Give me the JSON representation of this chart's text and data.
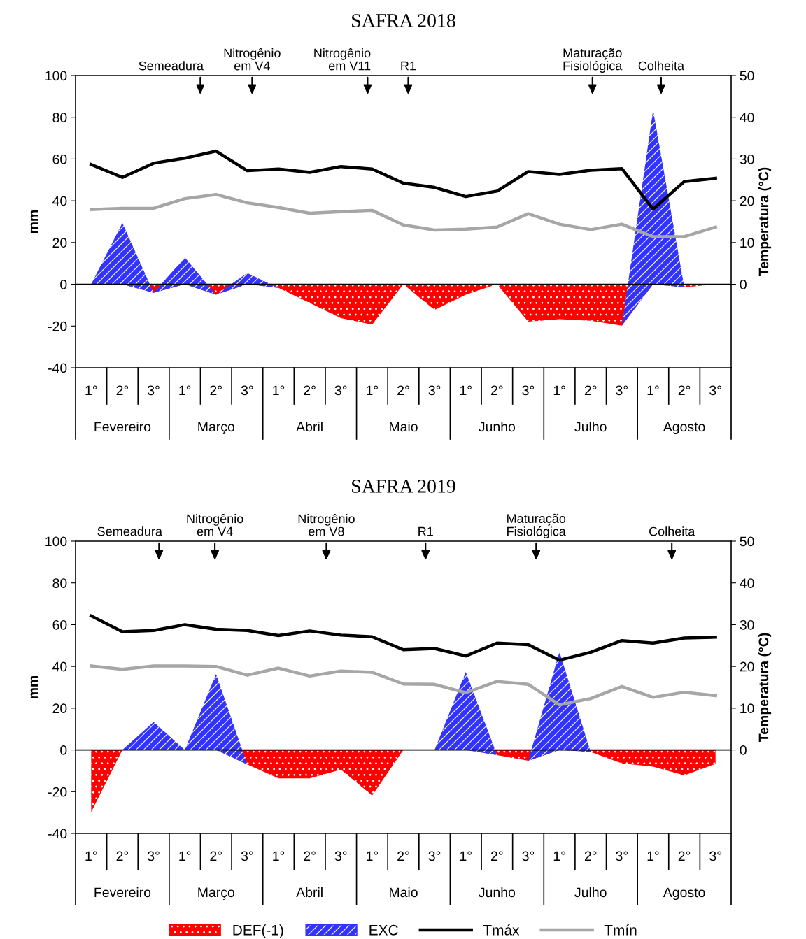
{
  "chart_data": [
    {
      "type": "area",
      "title": "SAFRA 2018",
      "ylabel": "mm",
      "y2label": "Temperatura (°C)",
      "stacked": true,
      "legend": false,
      "grid": false,
      "categories": [
        "1°",
        "2°",
        "3°",
        "1°",
        "2°",
        "3°",
        "1°",
        "2°",
        "3°",
        "1°",
        "2°",
        "3°",
        "1°",
        "2°",
        "3°",
        "1°",
        "2°",
        "3°",
        "1°",
        "2°",
        "3°"
      ],
      "series": [
        {
          "color": "#ff0000",
          "values": [
            0,
            0,
            -4.1,
            0,
            -5.0,
            0,
            -1.7,
            -8.9,
            -16.2,
            -19.3,
            0,
            -12.3,
            -5.0,
            0,
            -17.9,
            -16.7,
            -17.5,
            -19.8,
            0,
            -1.5,
            0
          ]
        },
        {
          "color": "#3333ff",
          "values": [
            0,
            29.4,
            0,
            12.8,
            0,
            5.4,
            0,
            0,
            0,
            0,
            0,
            0,
            0,
            0,
            0,
            0,
            0,
            0,
            83.5,
            0,
            0
          ]
        },
        {
          "type": "line",
          "axis": "y2",
          "color": "#000000",
          "values": [
            28.7,
            25.6,
            29.0,
            30.2,
            31.9,
            27.2,
            27.6,
            26.8,
            28.2,
            27.6,
            24.2,
            23.2,
            21.0,
            22.3,
            27.0,
            26.3,
            27.3,
            27.7,
            18.0,
            24.6,
            25.4
          ]
        },
        {
          "type": "line",
          "axis": "y2",
          "color": "#a6a6a6",
          "values": [
            17.9,
            18.2,
            18.2,
            20.5,
            21.5,
            19.5,
            18.4,
            17.0,
            17.4,
            17.7,
            14.2,
            13.0,
            13.2,
            13.7,
            16.9,
            14.4,
            13.1,
            14.4,
            11.4,
            11.4,
            13.7
          ]
        }
      ],
      "ylim": [
        -40,
        100
      ],
      "yticks": [
        -40,
        -20,
        0,
        20,
        40,
        60,
        80,
        100
      ],
      "y2lim": [
        -20,
        50
      ],
      "y2ticks": [
        0,
        10,
        20,
        30,
        40,
        50
      ],
      "ref_lines": [
        {
          "axis": "y",
          "value": 0,
          "color": "#000000"
        }
      ],
      "annotations": [
        "Semeadura",
        "Nitrogênio\nem V4",
        "Nitrogênio\nem V11",
        "R1",
        "Maturação\nFisiológica",
        "Colheita",
        "Fevereiro",
        "Março",
        "Abril",
        "Maio",
        "Junho",
        "Julho",
        "Agosto"
      ]
    },
    {
      "type": "area",
      "title": "SAFRA 2019",
      "ylabel": "mm",
      "y2label": "Temperatura (°C)",
      "stacked": true,
      "legend": "bottom",
      "grid": false,
      "categories": [
        "1°",
        "2°",
        "3°",
        "1°",
        "2°",
        "3°",
        "1°",
        "2°",
        "3°",
        "1°",
        "2°",
        "3°",
        "1°",
        "2°",
        "3°",
        "1°",
        "2°",
        "3°",
        "1°",
        "2°",
        "3°"
      ],
      "series": [
        {
          "name": "DEF(-1)",
          "color": "#ff0000",
          "values": [
            -29.8,
            0,
            0,
            0,
            0,
            -6.9,
            -13.6,
            -13.6,
            -9.4,
            -21.8,
            0,
            0,
            0,
            -2.5,
            -5.2,
            0,
            -1,
            -6.4,
            -8.0,
            -12.2,
            -6.7
          ]
        },
        {
          "name": "EXC",
          "color": "#3333ff",
          "values": [
            0,
            0,
            13.4,
            0,
            36.4,
            0,
            0,
            0,
            0,
            0,
            0,
            0,
            37.4,
            0,
            0,
            47.0,
            0,
            0,
            0,
            0,
            0
          ]
        },
        {
          "type": "line",
          "axis": "y2",
          "name": "Tmáx",
          "color": "#000000",
          "values": [
            32.1,
            28.3,
            28.6,
            30.0,
            28.9,
            28.6,
            27.4,
            28.5,
            27.5,
            27.1,
            24.0,
            24.3,
            22.5,
            25.6,
            25.2,
            21.5,
            23.4,
            26.2,
            25.6,
            26.8,
            27.0
          ]
        },
        {
          "type": "line",
          "axis": "y2",
          "name": "Tmín",
          "color": "#a6a6a6",
          "values": [
            20.1,
            19.3,
            20.1,
            20.1,
            20.0,
            17.9,
            19.6,
            17.7,
            18.9,
            18.6,
            15.8,
            15.7,
            13.7,
            16.4,
            15.7,
            10.8,
            12.3,
            15.2,
            12.6,
            13.8,
            13.0
          ]
        }
      ],
      "ylim": [
        -40,
        100
      ],
      "yticks": [
        -40,
        -20,
        0,
        20,
        40,
        60,
        80,
        100
      ],
      "y2lim": [
        -20,
        50
      ],
      "y2ticks": [
        0,
        10,
        20,
        30,
        40,
        50
      ],
      "ref_lines": [
        {
          "axis": "y",
          "value": 0,
          "color": "#000000"
        }
      ],
      "annotations": [
        "Semeadura",
        "Nitrogênio\nem V4",
        "Nitrogênio\nem V8",
        "R1",
        "Maturação\nFisiológica",
        "Colheita",
        "Fevereiro",
        "Março",
        "Abril",
        "Maio",
        "Junho",
        "Julho",
        "Agosto"
      ]
    }
  ]
}
